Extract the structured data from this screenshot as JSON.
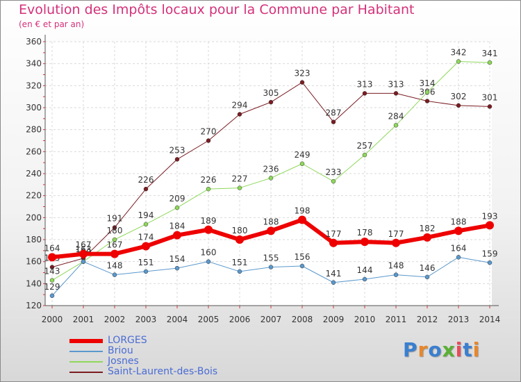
{
  "header": {
    "title": "Evolution des Impôts locaux pour la Commune par Habitant",
    "subtitle": "(en € et par an)"
  },
  "branding": {
    "text": "Proxiti",
    "letters": [
      {
        "char": "P",
        "color": "#3a7fd0"
      },
      {
        "char": "r",
        "color": "#e8872a"
      },
      {
        "char": "o",
        "color": "#3a7fd0"
      },
      {
        "char": "x",
        "color": "#5bb033"
      },
      {
        "char": "i",
        "color": "#e84b5a"
      },
      {
        "char": "t",
        "color": "#3a7fd0"
      },
      {
        "char": "i",
        "color": "#e8872a"
      }
    ]
  },
  "chart_data": {
    "type": "line",
    "title": "Evolution des Impôts locaux pour la Commune par Habitant",
    "subtitle": "(en € et par an)",
    "x": [
      "2000",
      "2001",
      "2002",
      "2003",
      "2004",
      "2005",
      "2006",
      "2007",
      "2008",
      "2009",
      "2010",
      "2011",
      "2012",
      "2013",
      "2014"
    ],
    "ylim": [
      120,
      360
    ],
    "yticks": [
      "120",
      "140",
      "160",
      "180",
      "200",
      "220",
      "240",
      "260",
      "280",
      "300",
      "320",
      "340",
      "360"
    ],
    "grid": true,
    "legend_position": "bottom-left",
    "series": [
      {
        "name": "Saint-Laurent-des-Bois",
        "color": "#7a1c22",
        "width": 1,
        "values": [
          155,
          163,
          191,
          226,
          253,
          270,
          294,
          305,
          323,
          287,
          313,
          313,
          306,
          302,
          301
        ]
      },
      {
        "name": "Josnes",
        "color": "#8ed85a",
        "width": 1,
        "values": [
          143,
          160,
          180,
          194,
          209,
          226,
          227,
          236,
          249,
          233,
          257,
          284,
          314,
          342,
          341
        ]
      },
      {
        "name": "Briou",
        "color": "#5a98cc",
        "width": 1,
        "values": [
          129,
          160,
          148,
          151,
          154,
          160,
          151,
          155,
          156,
          141,
          144,
          148,
          146,
          164,
          159
        ]
      },
      {
        "name": "LORGES",
        "color": "#ee0000",
        "width": 6,
        "values": [
          164,
          167,
          167,
          174,
          184,
          189,
          180,
          188,
          198,
          177,
          178,
          177,
          182,
          188,
          193
        ]
      }
    ]
  }
}
